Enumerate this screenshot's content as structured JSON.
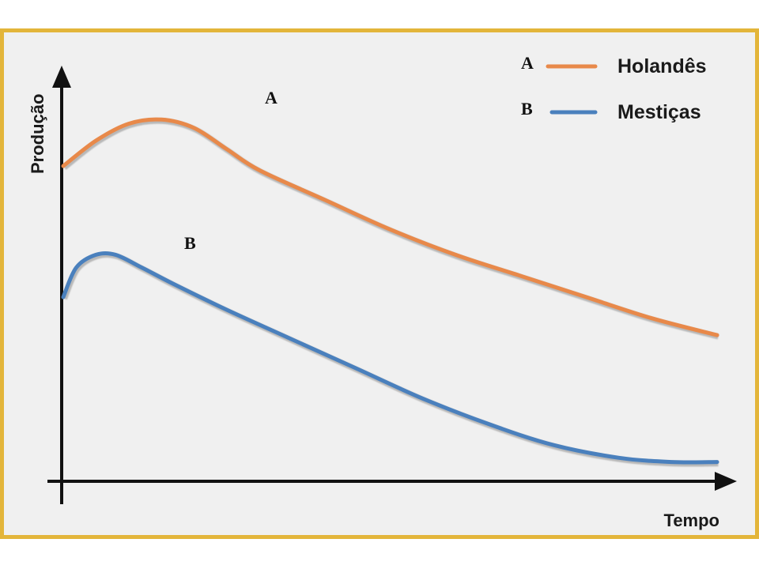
{
  "chart_data": {
    "type": "line",
    "title": "",
    "xlabel": "Tempo",
    "ylabel": "Produção",
    "grid": false,
    "legend_position": "top-right",
    "xlim": [
      0,
      10
    ],
    "ylim": [
      0,
      10
    ],
    "series": [
      {
        "letter": "A",
        "name": "Holandês",
        "color": "#e8894a",
        "x": [
          0,
          0.5,
          1.0,
          1.5,
          2.0,
          2.5,
          3.0,
          4.0,
          5.0,
          6.0,
          7.0,
          8.0,
          9.0,
          10.0
        ],
        "y": [
          7.4,
          8.0,
          8.4,
          8.5,
          8.3,
          7.8,
          7.3,
          6.6,
          5.9,
          5.3,
          4.8,
          4.3,
          3.8,
          3.4
        ]
      },
      {
        "letter": "B",
        "name": "Mestiças",
        "color": "#4a80bd",
        "x": [
          0,
          0.2,
          0.5,
          0.8,
          1.2,
          1.7,
          2.5,
          3.5,
          4.5,
          5.5,
          6.5,
          7.5,
          8.5,
          9.3,
          10.0
        ],
        "y": [
          4.3,
          5.0,
          5.3,
          5.3,
          5.0,
          4.6,
          4.0,
          3.3,
          2.6,
          1.9,
          1.3,
          0.8,
          0.5,
          0.4,
          0.4
        ]
      }
    ]
  }
}
